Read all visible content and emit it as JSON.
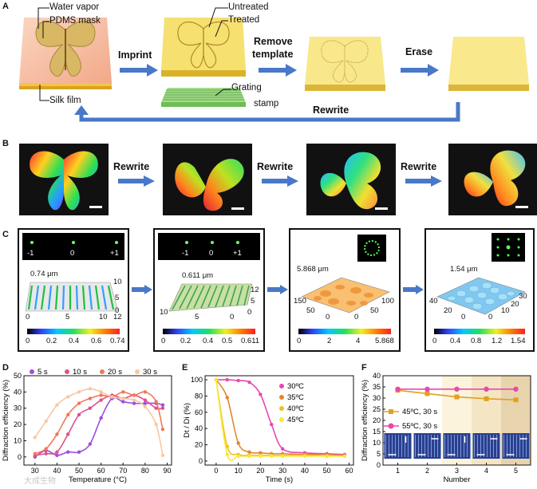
{
  "panel_labels": [
    "A",
    "B",
    "C",
    "D",
    "E",
    "F"
  ],
  "panel_a": {
    "labels": {
      "water_vapor": "Water vapor",
      "pdms_mask": "PDMS mask",
      "silk_film": "Silk film",
      "untreated": "Untreated",
      "treated": "Treated",
      "grating": "Grating",
      "stamp": "stamp"
    },
    "steps": {
      "imprint": "Imprint",
      "remove_1": "Remove",
      "remove_2": "template",
      "erase": "Erase",
      "rewrite": "Rewrite"
    }
  },
  "panel_b": {
    "arrow_label": "Rewrite"
  },
  "panel_c": {
    "diffraction_orders": [
      "-1",
      "0",
      "+1"
    ],
    "panels": [
      {
        "height_label": "0.74 μm",
        "cbar_ticks": [
          "0",
          "0.2",
          "0.4",
          "0.6",
          "0.74"
        ],
        "axis_ticks": [
          "10",
          "5",
          "0",
          "0",
          "5",
          "10",
          "12"
        ]
      },
      {
        "height_label": "0.611 μm",
        "cbar_ticks": [
          "0",
          "0.2",
          "0.4",
          "0.5",
          "0.611"
        ],
        "axis_ticks": [
          "12",
          "5",
          "0",
          "10",
          "5",
          "0"
        ]
      },
      {
        "height_label": "5.868 μm",
        "cbar_ticks": [
          "0",
          "2",
          "4",
          "5.868"
        ],
        "axis_ticks": [
          "150",
          "50",
          "0",
          "100",
          "50",
          "0"
        ]
      },
      {
        "height_label": "1.54 μm",
        "cbar_ticks": [
          "0",
          "0.4",
          "0.8",
          "1.2",
          "1.54"
        ],
        "axis_ticks": [
          "40",
          "20",
          "0",
          "30",
          "20",
          "10",
          "0"
        ]
      }
    ]
  },
  "chart_data": [
    {
      "id": "D",
      "type": "scatter",
      "xlabel": "Temperature (°C)",
      "ylabel": "Diffraction efficiency (%)",
      "xlim": [
        25,
        92
      ],
      "ylim": [
        -5,
        50
      ],
      "xticks": [
        "30",
        "40",
        "50",
        "60",
        "70",
        "80",
        "90"
      ],
      "yticks": [
        "0",
        "10",
        "20",
        "30",
        "40",
        "50"
      ],
      "series": [
        {
          "name": "5 s",
          "color": "#9b4fe0",
          "x": [
            30,
            35,
            40,
            45,
            50,
            55,
            60,
            65,
            70,
            75,
            80,
            85,
            88
          ],
          "y": [
            0,
            4,
            1,
            3,
            3,
            8,
            24,
            36,
            34,
            33,
            33,
            33,
            32
          ]
        },
        {
          "name": "10 s",
          "color": "#e0508a",
          "x": [
            30,
            35,
            40,
            45,
            50,
            55,
            60,
            65,
            70,
            75,
            80,
            85,
            88
          ],
          "y": [
            1,
            2,
            3,
            14,
            26,
            30,
            35,
            38,
            36,
            38,
            35,
            30,
            30
          ]
        },
        {
          "name": "20 s",
          "color": "#f07858",
          "x": [
            30,
            35,
            40,
            45,
            50,
            55,
            60,
            65,
            70,
            75,
            80,
            85,
            88
          ],
          "y": [
            2,
            5,
            14,
            26,
            33,
            36,
            38,
            37,
            40,
            38,
            40,
            34,
            17
          ]
        },
        {
          "name": "30 s",
          "color": "#f8c8a0",
          "x": [
            30,
            35,
            40,
            45,
            50,
            55,
            60,
            65,
            70,
            75,
            80,
            85,
            88
          ],
          "y": [
            12,
            22,
            32,
            37,
            40,
            42,
            40,
            37,
            36,
            35,
            31,
            20,
            1
          ]
        }
      ]
    },
    {
      "id": "E",
      "type": "scatter",
      "xlabel": "Time (s)",
      "ylabel": "Dt / Di (%)",
      "xlim": [
        -5,
        62
      ],
      "ylim": [
        -5,
        105
      ],
      "xticks": [
        "0",
        "10",
        "20",
        "30",
        "40",
        "50",
        "60"
      ],
      "yticks": [
        "0",
        "20",
        "40",
        "60",
        "80",
        "100"
      ],
      "series": [
        {
          "name": "30ºC",
          "color": "#e848b0",
          "x": [
            0,
            5,
            10,
            15,
            20,
            25,
            30,
            40,
            50,
            58
          ],
          "y": [
            100,
            100,
            99,
            97,
            82,
            45,
            15,
            10,
            9,
            8
          ]
        },
        {
          "name": "35ºC",
          "color": "#e08830",
          "x": [
            0,
            5,
            10,
            15,
            20,
            25,
            30,
            40,
            50,
            58
          ],
          "y": [
            100,
            78,
            22,
            11,
            10,
            9,
            9,
            8,
            8,
            7
          ]
        },
        {
          "name": "40ºC",
          "color": "#f0c020",
          "x": [
            0,
            5,
            10,
            15,
            20,
            25,
            30,
            40,
            50,
            58
          ],
          "y": [
            100,
            18,
            8,
            7,
            7,
            7,
            7,
            7,
            6,
            6
          ]
        },
        {
          "name": "45ºC",
          "color": "#f8e838",
          "x": [
            0,
            5,
            10,
            15,
            20,
            25,
            30,
            40,
            50,
            58
          ],
          "y": [
            100,
            8,
            6,
            6,
            6,
            6,
            6,
            6,
            6,
            6
          ]
        }
      ]
    },
    {
      "id": "F",
      "type": "line",
      "xlabel": "Number",
      "ylabel": "Diffraction efficiency (%)",
      "xlim": [
        0.5,
        5.5
      ],
      "ylim": [
        0,
        40
      ],
      "xticks": [
        "1",
        "2",
        "3",
        "4",
        "5"
      ],
      "yticks": [
        "0",
        "5",
        "10",
        "15",
        "20",
        "25",
        "30",
        "35",
        "40"
      ],
      "series": [
        {
          "name": "45ºC, 30 s",
          "color": "#e0a020",
          "marker": "square",
          "x": [
            1,
            2,
            3,
            4,
            5
          ],
          "y": [
            33.5,
            32,
            30.5,
            29.7,
            29.2
          ]
        },
        {
          "name": "55ºC, 30 s",
          "color": "#e848b0",
          "marker": "circle",
          "x": [
            1,
            2,
            3,
            4,
            5
          ],
          "y": [
            34,
            34,
            34,
            34,
            34
          ]
        }
      ]
    }
  ],
  "watermark": "大成生物"
}
